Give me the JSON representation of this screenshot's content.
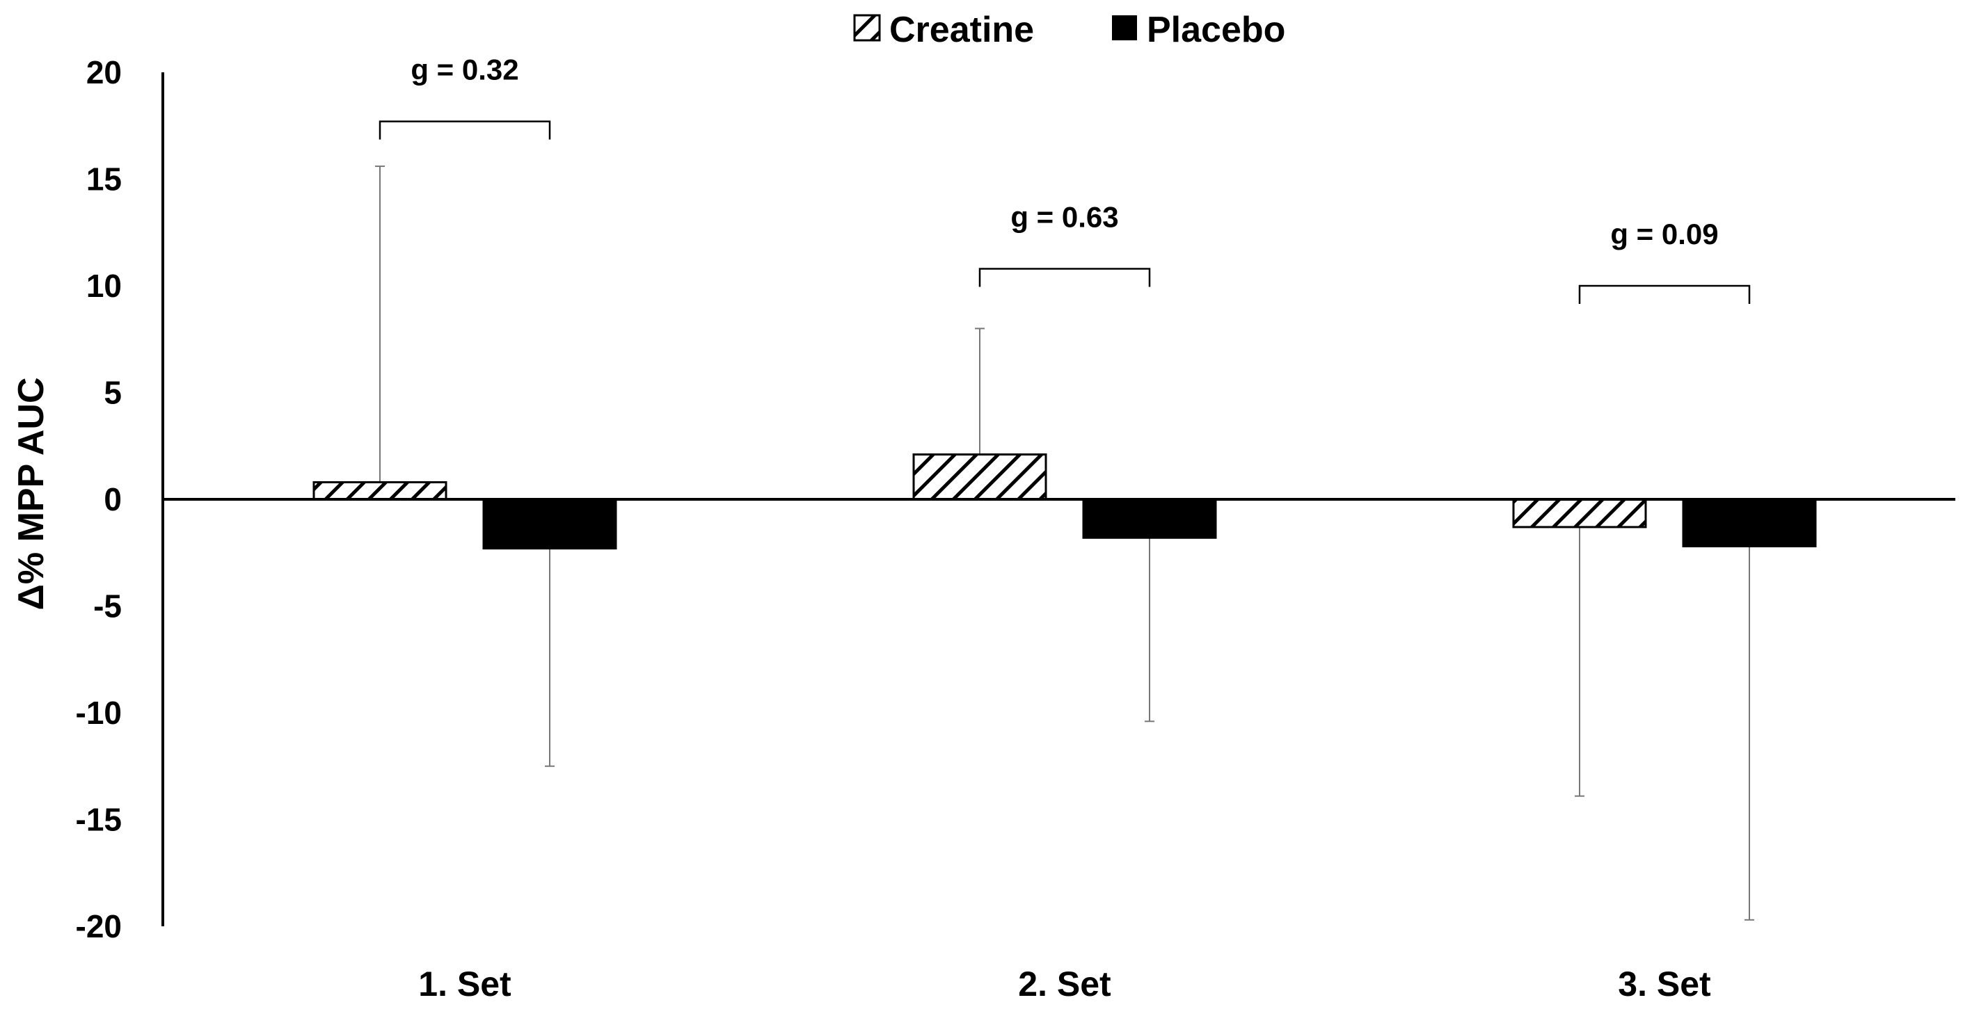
{
  "chart_data": {
    "type": "bar",
    "title": "",
    "xlabel": "",
    "ylabel": "Δ% MPP AUC",
    "ylim": [
      -20,
      20
    ],
    "yticks": [
      20,
      15,
      10,
      5,
      0,
      -5,
      -10,
      -15,
      -20
    ],
    "grid": false,
    "legend_position": "top-center",
    "categories": [
      "1. Set",
      "2. Set",
      "3. Set"
    ],
    "series": [
      {
        "name": "Creatine",
        "pattern": "hatched",
        "color": "#ffffff",
        "values": [
          0.8,
          2.1,
          -1.3
        ],
        "error_direction": "up-for-positive, down-for-negative",
        "error_bounds": [
          15.6,
          8.0,
          -13.9
        ]
      },
      {
        "name": "Placebo",
        "pattern": "solid",
        "color": "#000000",
        "values": [
          -2.3,
          -1.8,
          -2.2
        ],
        "error_bounds": [
          -12.5,
          -10.4,
          -19.7
        ]
      }
    ],
    "annotations": [
      {
        "category": "1. Set",
        "text": "g = 0.32",
        "bracket_y": 17.7
      },
      {
        "category": "2. Set",
        "text": "g = 0.63",
        "bracket_y": 10.8
      },
      {
        "category": "3. Set",
        "text": "g = 0.09",
        "bracket_y": 10.0
      }
    ]
  }
}
